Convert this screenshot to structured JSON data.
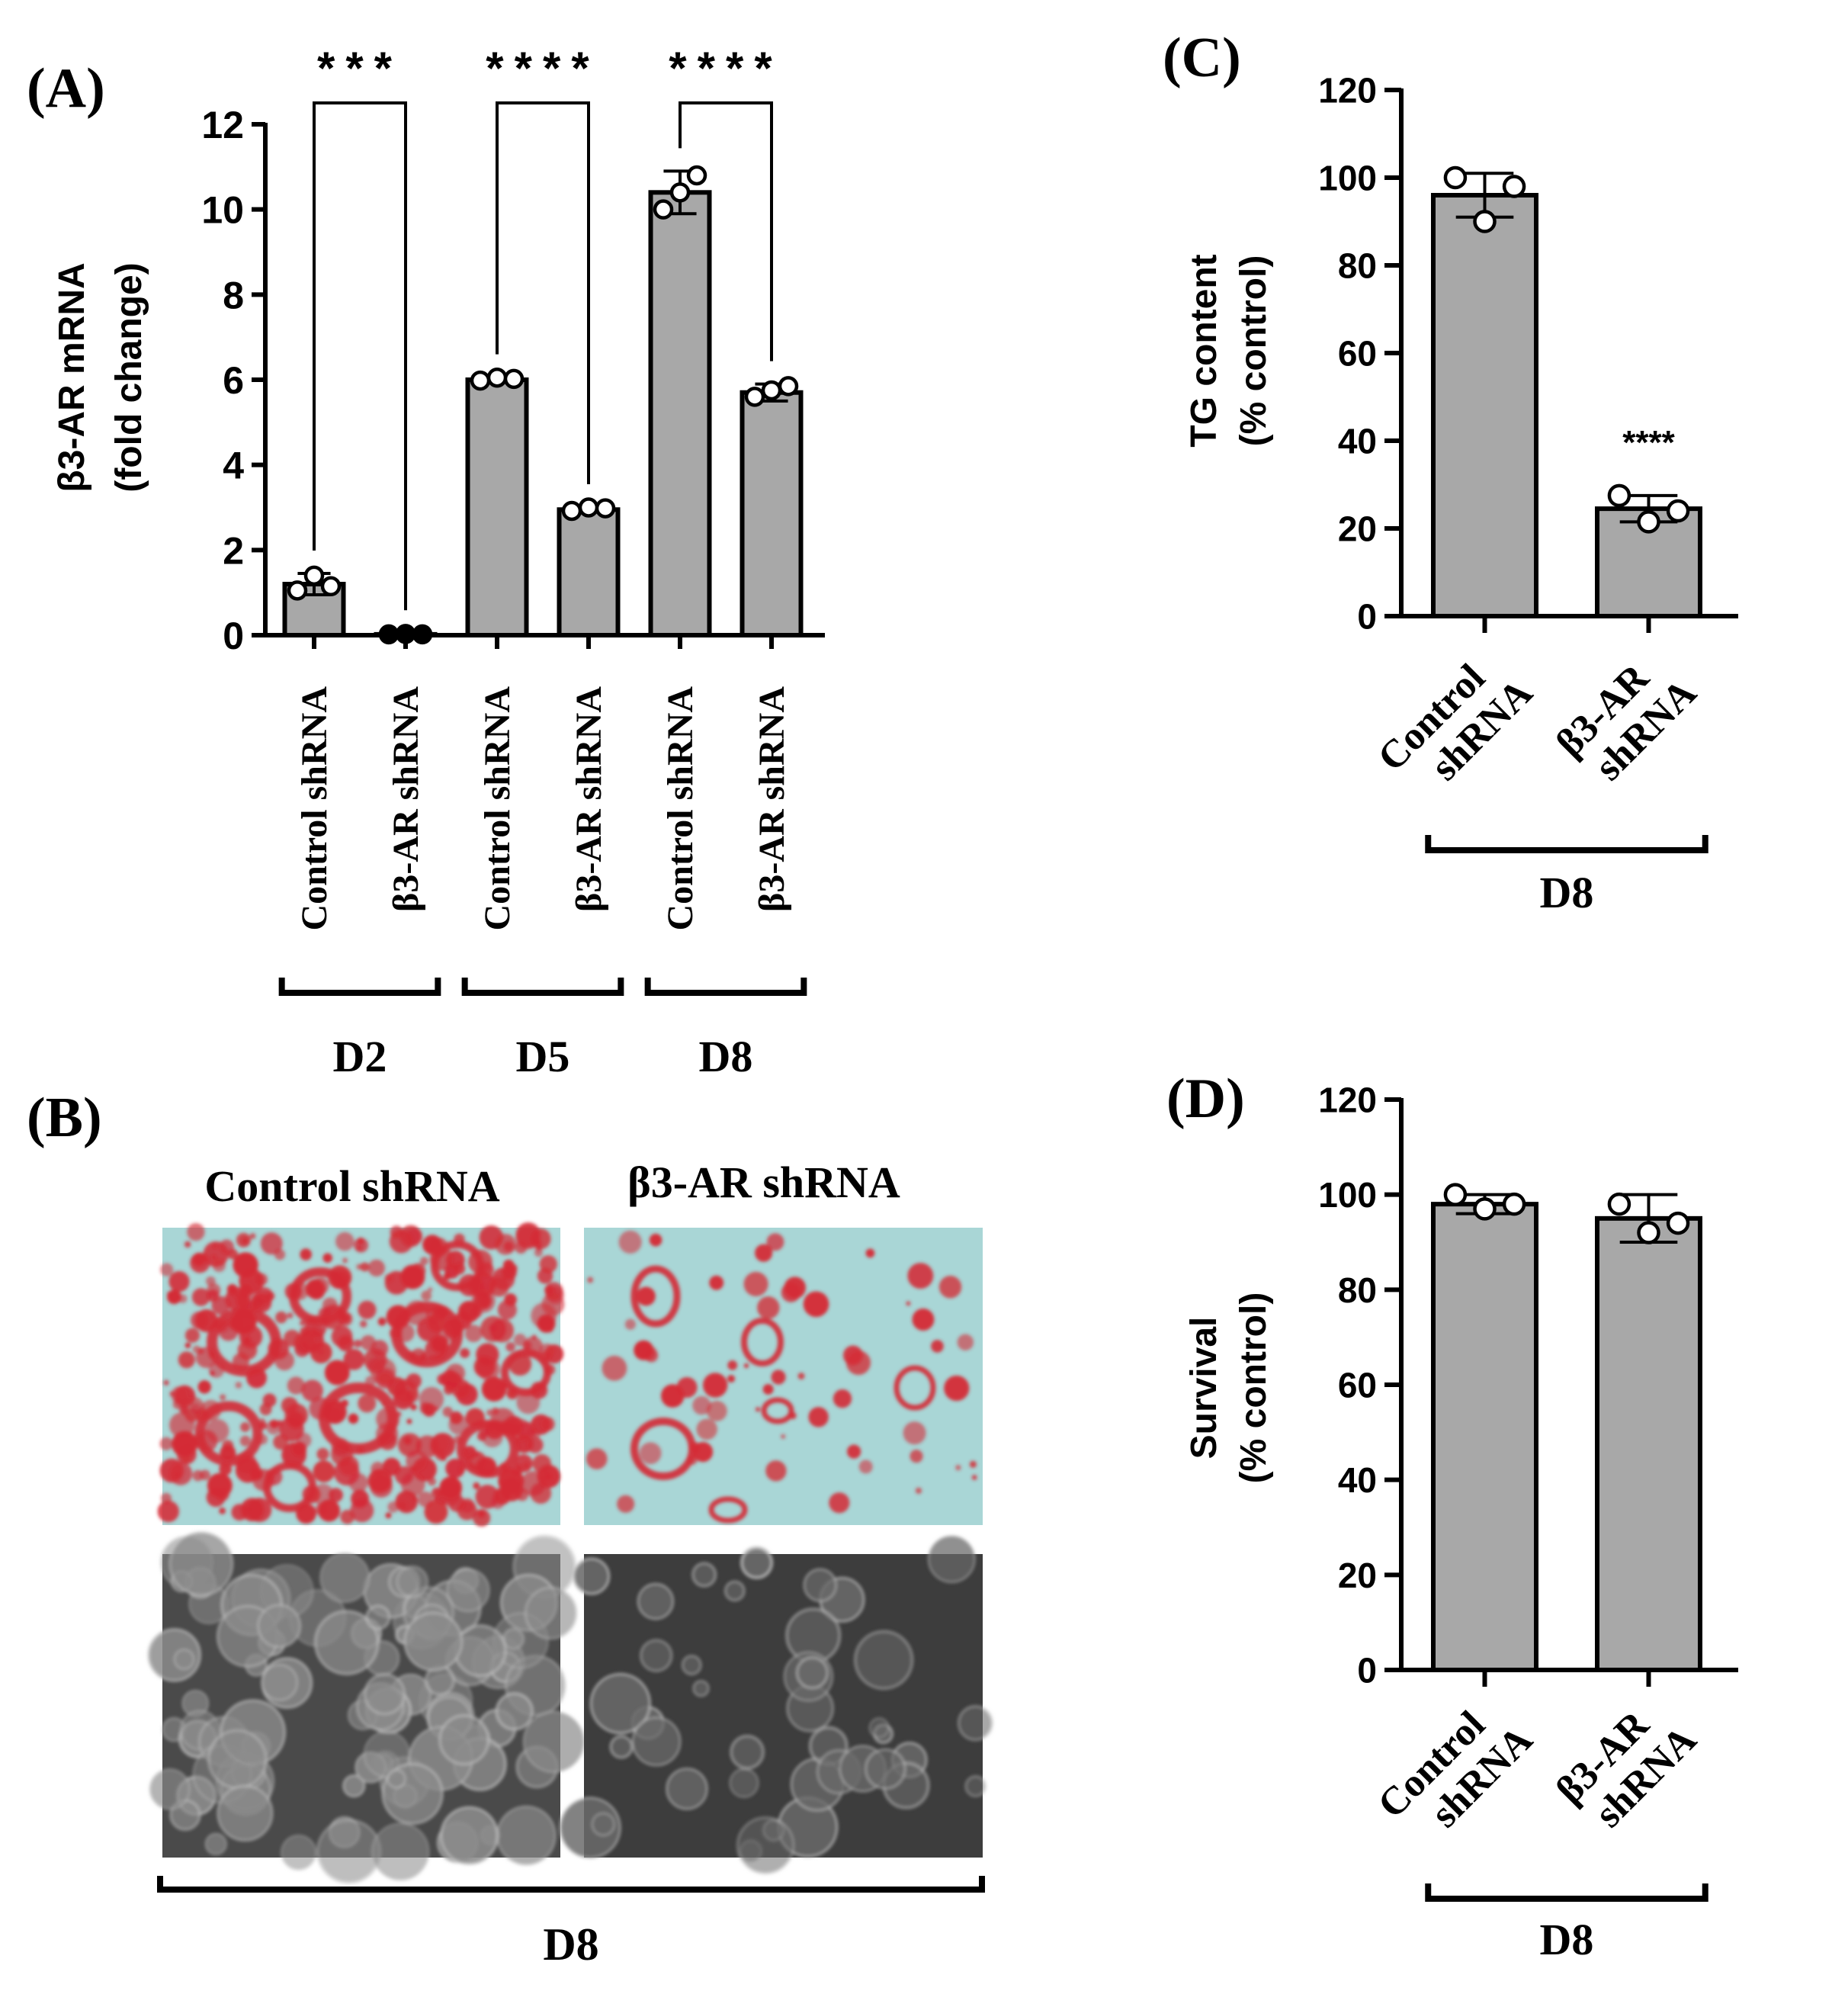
{
  "panels": {
    "A": "(A)",
    "B": "(B)",
    "C": "(C)",
    "D": "(D)"
  },
  "chart_data": [
    {
      "panel": "(A)",
      "type": "bar",
      "ylabel_line1": "β3-AR mRNA",
      "ylabel_line2": "(fold change)",
      "ylim": [
        0,
        12
      ],
      "yticks": [
        "0",
        "2",
        "4",
        "6",
        "8",
        "10",
        "12"
      ],
      "categories": [
        "Control shRNA",
        "β3-AR shRNA",
        "Control shRNA",
        "β3-AR shRNA",
        "Control shRNA",
        "β3-AR shRNA"
      ],
      "values": [
        1.2,
        0.02,
        6.0,
        2.95,
        10.4,
        5.7
      ],
      "errors": [
        0.25,
        0.03,
        0.06,
        0.06,
        0.5,
        0.2
      ],
      "points": [
        [
          1.05,
          1.4,
          1.15
        ],
        [
          0.02,
          0.03,
          0.02
        ],
        [
          5.98,
          6.05,
          6.02
        ],
        [
          2.92,
          3.0,
          2.98
        ],
        [
          10.0,
          10.4,
          10.8
        ],
        [
          5.6,
          5.75,
          5.85
        ]
      ],
      "groups": [
        {
          "label": "D2",
          "span": [
            0,
            1
          ]
        },
        {
          "label": "D5",
          "span": [
            2,
            3
          ]
        },
        {
          "label": "D8",
          "span": [
            4,
            5
          ]
        }
      ],
      "significance": [
        {
          "span": [
            0,
            1
          ],
          "label": "***"
        },
        {
          "span": [
            2,
            3
          ],
          "label": "****"
        },
        {
          "span": [
            4,
            5
          ],
          "label": "****"
        }
      ],
      "bar_color": "#a8a8a8"
    },
    {
      "panel": "(C)",
      "type": "bar",
      "ylabel_line1": "TG content",
      "ylabel_line2": "(% control)",
      "ylim": [
        0,
        120
      ],
      "yticks": [
        "0",
        "20",
        "40",
        "60",
        "80",
        "100",
        "120"
      ],
      "categories": [
        "Control shRNA",
        "β3-AR shRNA"
      ],
      "category_lines": [
        [
          "Control",
          "shRNA"
        ],
        [
          "β3-AR",
          "shRNA"
        ]
      ],
      "values": [
        96,
        24.5
      ],
      "errors": [
        5,
        3
      ],
      "points": [
        [
          100,
          90,
          98
        ],
        [
          27.5,
          21.5,
          24
        ]
      ],
      "groups": [
        {
          "label": "D8",
          "span": [
            0,
            1
          ]
        }
      ],
      "annotations": [
        {
          "bar": 1,
          "label": "****"
        }
      ],
      "bar_color": "#a8a8a8"
    },
    {
      "panel": "(D)",
      "type": "bar",
      "ylabel_line1": "Survival",
      "ylabel_line2": "(% control)",
      "ylim": [
        0,
        120
      ],
      "yticks": [
        "0",
        "20",
        "40",
        "60",
        "80",
        "100",
        "120"
      ],
      "categories": [
        "Control shRNA",
        "β3-AR shRNA"
      ],
      "category_lines": [
        [
          "Control",
          "shRNA"
        ],
        [
          "β3-AR",
          "shRNA"
        ]
      ],
      "values": [
        98,
        95
      ],
      "errors": [
        2,
        5
      ],
      "points": [
        [
          100,
          97,
          98
        ],
        [
          98,
          92,
          94
        ]
      ],
      "groups": [
        {
          "label": "D8",
          "span": [
            0,
            1
          ]
        }
      ],
      "bar_color": "#a8a8a8"
    }
  ],
  "micrographs": {
    "columns": [
      "Control shRNA",
      "β3-AR shRNA"
    ],
    "group_label": "D8",
    "colors": {
      "oil_red_bg": "#a9d6d6",
      "oil_red_stain": "#d42a35",
      "phase_bg": "#4a4a4a",
      "phase_light": "#bdbdbd"
    }
  }
}
